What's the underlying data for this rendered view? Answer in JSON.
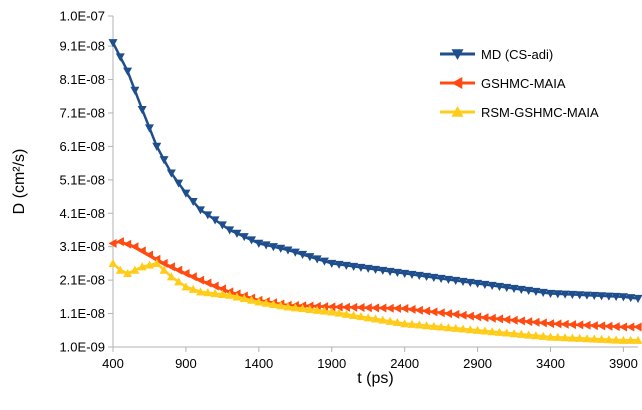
{
  "chart_data": {
    "type": "line",
    "title": "",
    "xlabel": "t (ps)",
    "ylabel": "D (cm²/s)",
    "xlim": [
      400,
      4000
    ],
    "ylim": [
      1e-09,
      1e-07
    ],
    "x_ticks": [
      400,
      900,
      1400,
      1900,
      2400,
      2900,
      3400,
      3900
    ],
    "x_tick_labels": [
      "400",
      "900",
      "1400",
      "1900",
      "2400",
      "2900",
      "3400",
      "3900"
    ],
    "y_ticks": [
      1e-09,
      1.1e-08,
      2.1e-08,
      3.1e-08,
      4.1e-08,
      5.1e-08,
      6.1e-08,
      7.1e-08,
      8.1e-08,
      9.1e-08,
      1e-07
    ],
    "y_tick_labels": [
      "1.0E-09",
      "1.1E-08",
      "2.1E-08",
      "3.1E-08",
      "4.1E-08",
      "5.1E-08",
      "6.1E-08",
      "7.1E-08",
      "8.1E-08",
      "9.1E-08",
      "1.0E-07"
    ],
    "grid": false,
    "legend_position": "top-right",
    "series": [
      {
        "name": "MD (CS-adi)",
        "color": "#1f4e8c",
        "marker": "triangle-down",
        "points": [
          [
            400,
            9.2e-08
          ],
          [
            500,
            8.35e-08
          ],
          [
            600,
            7.2e-08
          ],
          [
            700,
            6.1e-08
          ],
          [
            800,
            5.3e-08
          ],
          [
            900,
            4.7e-08
          ],
          [
            1000,
            4.2e-08
          ],
          [
            1200,
            3.6e-08
          ],
          [
            1400,
            3.2e-08
          ],
          [
            1600,
            3e-08
          ],
          [
            1900,
            2.6e-08
          ],
          [
            2400,
            2.3e-08
          ],
          [
            2900,
            2e-08
          ],
          [
            3400,
            1.7e-08
          ],
          [
            3900,
            1.6e-08
          ],
          [
            4000,
            1.55e-08
          ]
        ]
      },
      {
        "name": "GSHMC-MAIA",
        "color": "#ff4b12",
        "marker": "triangle-left",
        "points": [
          [
            400,
            3.2e-08
          ],
          [
            450,
            3.25e-08
          ],
          [
            550,
            3.1e-08
          ],
          [
            650,
            2.85e-08
          ],
          [
            750,
            2.6e-08
          ],
          [
            900,
            2.3e-08
          ],
          [
            1000,
            2.1e-08
          ],
          [
            1200,
            1.75e-08
          ],
          [
            1400,
            1.5e-08
          ],
          [
            1600,
            1.35e-08
          ],
          [
            1900,
            1.3e-08
          ],
          [
            2400,
            1.25e-08
          ],
          [
            2900,
            1e-08
          ],
          [
            3400,
            8e-09
          ],
          [
            3900,
            7e-09
          ],
          [
            4000,
            7e-09
          ]
        ]
      },
      {
        "name": "RSM-GSHMC-MAIA",
        "color": "#ffcc1a",
        "marker": "triangle-up",
        "points": [
          [
            400,
            2.6e-08
          ],
          [
            450,
            2.4e-08
          ],
          [
            500,
            2.3e-08
          ],
          [
            600,
            2.5e-08
          ],
          [
            700,
            2.6e-08
          ],
          [
            800,
            2.2e-08
          ],
          [
            900,
            1.9e-08
          ],
          [
            1000,
            1.75e-08
          ],
          [
            1200,
            1.65e-08
          ],
          [
            1400,
            1.45e-08
          ],
          [
            1600,
            1.3e-08
          ],
          [
            1900,
            1.15e-08
          ],
          [
            2400,
            8e-09
          ],
          [
            2900,
            6e-09
          ],
          [
            3400,
            4e-09
          ],
          [
            3900,
            3e-09
          ],
          [
            4000,
            3e-09
          ]
        ]
      }
    ]
  }
}
